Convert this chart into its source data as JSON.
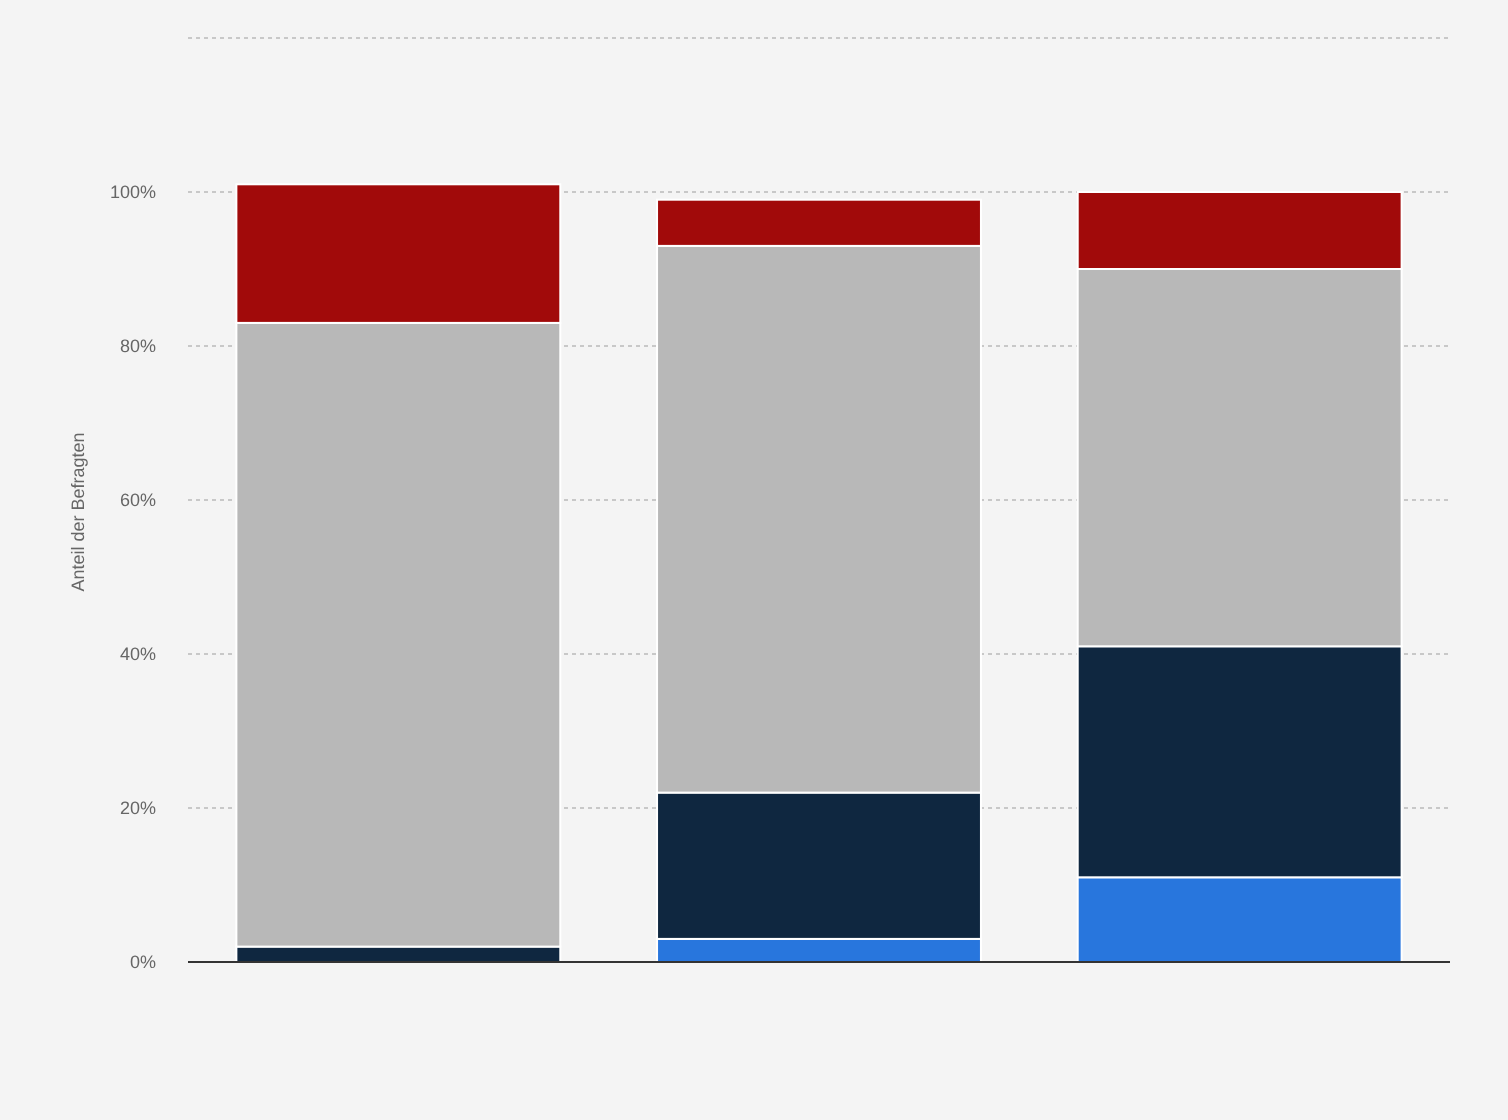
{
  "chart_data": {
    "type": "bar",
    "ylabel": "Anteil der Befragten",
    "categories": [
      null,
      null,
      null
    ],
    "stacked": true,
    "series": [
      {
        "color": "#2876dd",
        "values": [
          0,
          3,
          11
        ]
      },
      {
        "color": "#0f2740",
        "values": [
          2,
          19,
          30
        ]
      },
      {
        "color": "#b8b8b8",
        "values": [
          81,
          71,
          49
        ]
      },
      {
        "color": "#a10a0a",
        "values": [
          18,
          6,
          10
        ]
      }
    ],
    "ylim": [
      0,
      120
    ],
    "yticks": [
      {
        "value": 0,
        "label": "0%"
      },
      {
        "value": 20,
        "label": "20%"
      },
      {
        "value": 40,
        "label": "40%"
      },
      {
        "value": 60,
        "label": "60%"
      },
      {
        "value": 80,
        "label": "80%"
      },
      {
        "value": 100,
        "label": "100%"
      },
      {
        "value": 120,
        "label": null
      }
    ],
    "grid": "y"
  }
}
